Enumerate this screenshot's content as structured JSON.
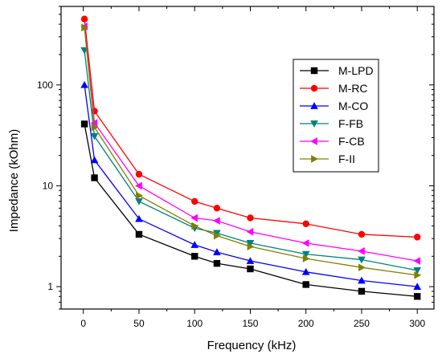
{
  "chart_data": {
    "type": "line",
    "xlabel": "Frequency (kHz)",
    "ylabel": "Impedance (kOhm)",
    "xlim": [
      -20,
      315
    ],
    "ylim": [
      0.6,
      600
    ],
    "y_scale": "log",
    "grid": false,
    "legend_position": "top-right",
    "x_ticks": [
      0,
      50,
      100,
      150,
      200,
      250,
      300
    ],
    "x_tick_labels": [
      "0",
      "50",
      "100",
      "150",
      "200",
      "250",
      "300"
    ],
    "y_ticks": [
      1,
      10,
      100
    ],
    "y_tick_labels": [
      "1",
      "10",
      "100"
    ],
    "x": [
      1,
      10,
      50,
      100,
      120,
      150,
      200,
      250,
      300
    ],
    "series": [
      {
        "name": "M-LPD",
        "color": "#000000",
        "marker": "square",
        "values": [
          41,
          12,
          3.3,
          2.0,
          1.7,
          1.5,
          1.05,
          0.9,
          0.8
        ]
      },
      {
        "name": "M-RC",
        "color": "#ff0000",
        "marker": "circle",
        "values": [
          450,
          55,
          13,
          7.0,
          6.0,
          4.8,
          4.2,
          3.3,
          3.1
        ]
      },
      {
        "name": "M-CO",
        "color": "#0000ff",
        "marker": "triangle-up",
        "values": [
          100,
          18,
          4.7,
          2.6,
          2.2,
          1.8,
          1.4,
          1.15,
          1.0
        ]
      },
      {
        "name": "F-FB",
        "color": "#008080",
        "marker": "triangle-down",
        "values": [
          220,
          31,
          7.0,
          3.8,
          3.4,
          2.7,
          2.1,
          1.85,
          1.45
        ]
      },
      {
        "name": "F-CB",
        "color": "#ff00ff",
        "marker": "triangle-left",
        "values": [
          380,
          42,
          10,
          4.8,
          4.5,
          3.5,
          2.7,
          2.25,
          1.8
        ]
      },
      {
        "name": "F-II",
        "color": "#808000",
        "marker": "triangle-right",
        "values": [
          370,
          38,
          8.0,
          4.0,
          3.2,
          2.5,
          1.9,
          1.55,
          1.3
        ]
      }
    ]
  }
}
